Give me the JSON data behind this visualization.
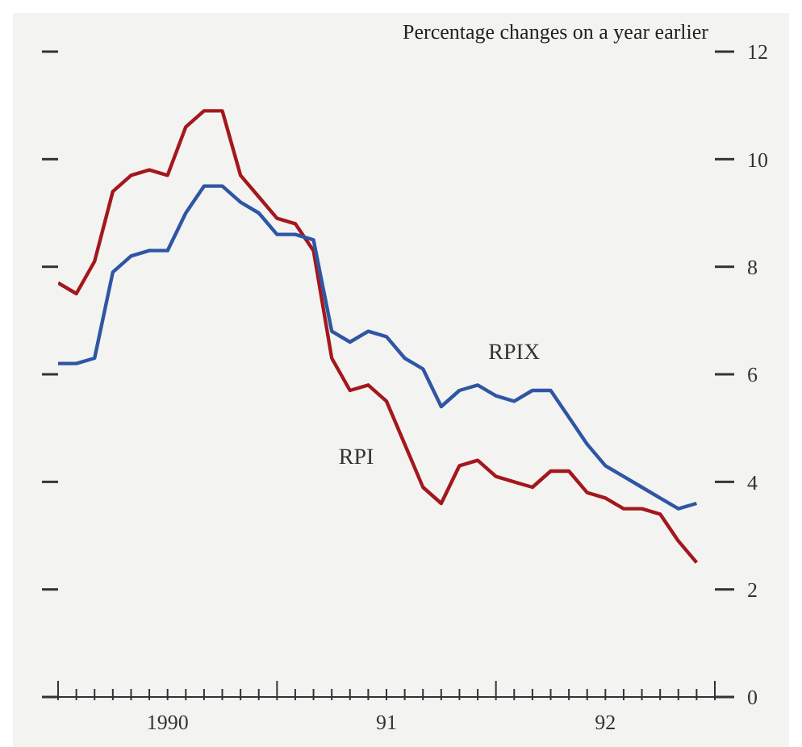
{
  "chart_data": {
    "type": "line",
    "ylabel": "Percentage changes on a year earlier",
    "x": [
      "1990-01",
      "1990-02",
      "1990-03",
      "1990-04",
      "1990-05",
      "1990-06",
      "1990-07",
      "1990-08",
      "1990-09",
      "1990-10",
      "1990-11",
      "1990-12",
      "1991-01",
      "1991-02",
      "1991-03",
      "1991-04",
      "1991-05",
      "1991-06",
      "1991-07",
      "1991-08",
      "1991-09",
      "1991-10",
      "1991-11",
      "1991-12",
      "1992-01",
      "1992-02",
      "1992-03",
      "1992-04",
      "1992-05",
      "1992-06",
      "1992-07",
      "1992-08",
      "1992-09",
      "1992-10",
      "1992-11",
      "1992-12"
    ],
    "series": [
      {
        "name": "RPI",
        "color": "#a3181d",
        "values": [
          7.7,
          7.5,
          8.1,
          9.4,
          9.7,
          9.8,
          9.7,
          10.6,
          10.9,
          10.9,
          9.7,
          9.3,
          8.9,
          8.8,
          8.3,
          6.3,
          5.7,
          5.8,
          5.5,
          4.7,
          3.9,
          3.6,
          4.3,
          4.4,
          4.1,
          4.0,
          3.9,
          4.2,
          4.2,
          3.8,
          3.7,
          3.5,
          3.5,
          3.4,
          2.9,
          2.5
        ]
      },
      {
        "name": "RPIX",
        "color": "#2f56a3",
        "values": [
          6.2,
          6.2,
          6.3,
          7.9,
          8.2,
          8.3,
          8.3,
          9.0,
          9.5,
          9.5,
          9.2,
          9.0,
          8.6,
          8.6,
          8.5,
          6.8,
          6.6,
          6.8,
          6.7,
          6.3,
          6.1,
          5.4,
          5.7,
          5.8,
          5.6,
          5.5,
          5.7,
          5.7,
          5.2,
          4.7,
          4.3,
          4.1,
          3.9,
          3.7,
          3.5,
          3.6
        ]
      }
    ],
    "xlim": [
      "1990-01",
      "1993-01"
    ],
    "xticks": [
      {
        "value": "1990-01",
        "label": null
      },
      {
        "value": "1990-02",
        "label": null
      },
      {
        "value": "1990-03",
        "label": null
      },
      {
        "value": "1990-04",
        "label": null
      },
      {
        "value": "1990-05",
        "label": null
      },
      {
        "value": "1990-06",
        "label": null
      },
      {
        "value": "1990-07",
        "label": "1990"
      },
      {
        "value": "1990-08",
        "label": null
      },
      {
        "value": "1990-09",
        "label": null
      },
      {
        "value": "1990-10",
        "label": null
      },
      {
        "value": "1990-11",
        "label": null
      },
      {
        "value": "1990-12",
        "label": null
      },
      {
        "value": "1991-01",
        "label": null
      },
      {
        "value": "1991-02",
        "label": null
      },
      {
        "value": "1991-03",
        "label": null
      },
      {
        "value": "1991-04",
        "label": null
      },
      {
        "value": "1991-05",
        "label": null
      },
      {
        "value": "1991-06",
        "label": null
      },
      {
        "value": "1991-07",
        "label": "91"
      },
      {
        "value": "1991-08",
        "label": null
      },
      {
        "value": "1991-09",
        "label": null
      },
      {
        "value": "1991-10",
        "label": null
      },
      {
        "value": "1991-11",
        "label": null
      },
      {
        "value": "1991-12",
        "label": null
      },
      {
        "value": "1992-01",
        "label": null
      },
      {
        "value": "1992-02",
        "label": null
      },
      {
        "value": "1992-03",
        "label": null
      },
      {
        "value": "1992-04",
        "label": null
      },
      {
        "value": "1992-05",
        "label": null
      },
      {
        "value": "1992-06",
        "label": null
      },
      {
        "value": "1992-07",
        "label": "92"
      },
      {
        "value": "1992-08",
        "label": null
      },
      {
        "value": "1992-09",
        "label": null
      },
      {
        "value": "1992-10",
        "label": null
      },
      {
        "value": "1992-11",
        "label": null
      },
      {
        "value": "1992-12",
        "label": null
      },
      {
        "value": "1993-01",
        "label": null
      }
    ],
    "ylim": [
      0,
      12
    ],
    "yticks": [
      0,
      2,
      4,
      6,
      8,
      10,
      12
    ],
    "grid": false,
    "legend": false,
    "marker": "none",
    "line_style": "solid"
  }
}
